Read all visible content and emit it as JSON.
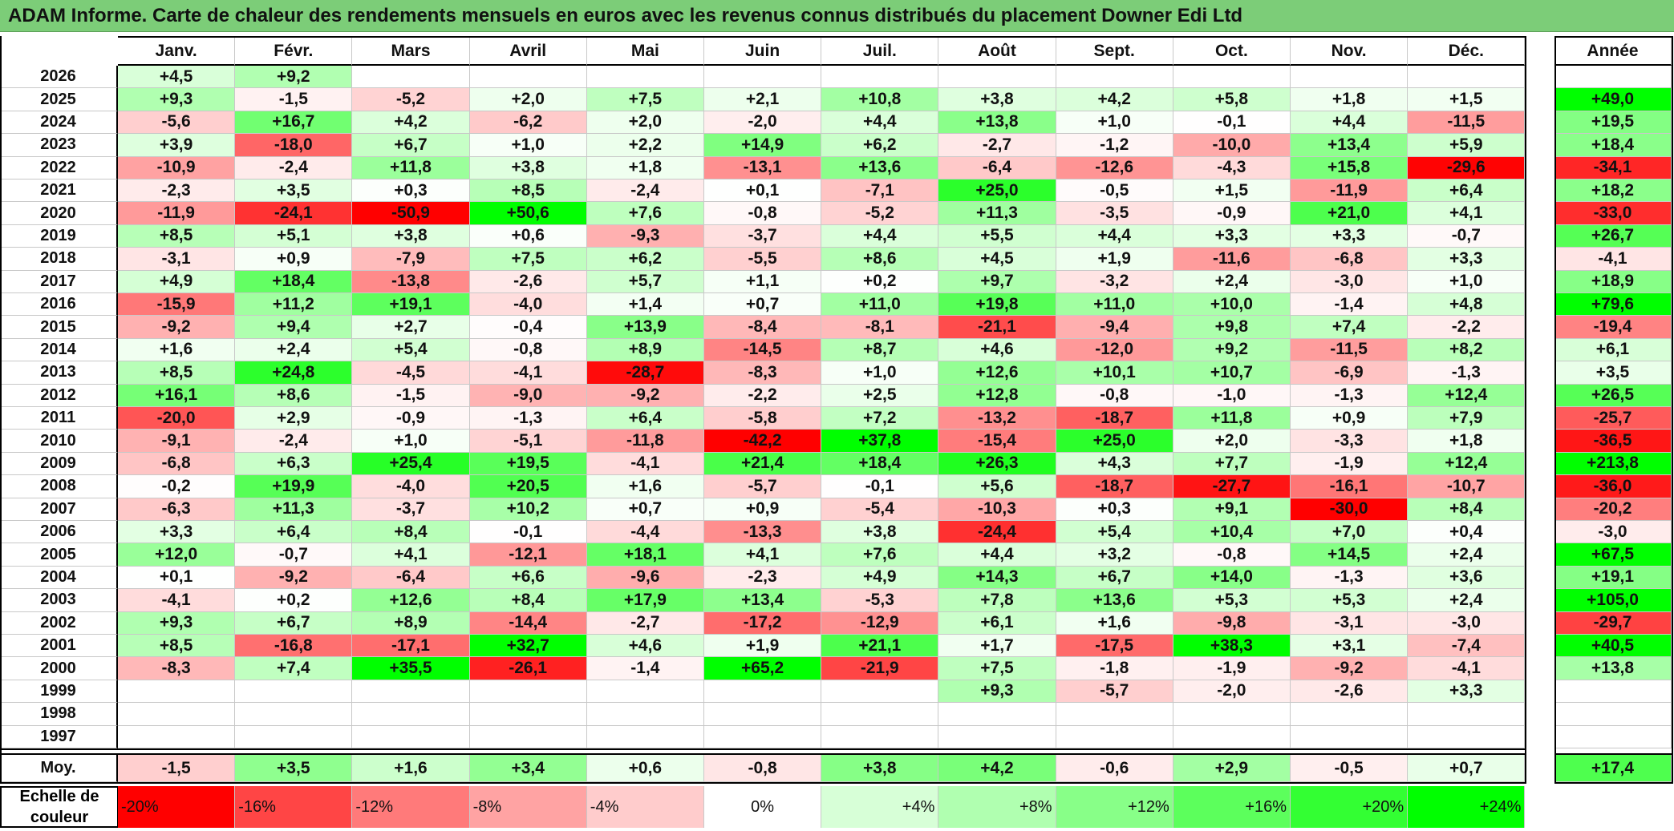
{
  "title": "ADAM Informe. Carte de chaleur des rendements mensuels en euros avec les revenus connus distribués du placement Downer Edi Ltd",
  "chart_data": {
    "type": "heatmap",
    "months": [
      "Janv.",
      "Févr.",
      "Mars",
      "Avril",
      "Mai",
      "Juin",
      "Juil.",
      "Août",
      "Sept.",
      "Oct.",
      "Nov.",
      "Déc."
    ],
    "year_header": "Année",
    "rows": [
      {
        "year": "2026",
        "values": [
          "+4,5",
          "+9,2",
          "",
          "",
          "",
          "",
          "",
          "",
          "",
          "",
          "",
          ""
        ],
        "annual": ""
      },
      {
        "year": "2025",
        "values": [
          "+9,3",
          "-1,5",
          "-5,2",
          "+2,0",
          "+7,5",
          "+2,1",
          "+10,8",
          "+3,8",
          "+4,2",
          "+5,8",
          "+1,8",
          "+1,5"
        ],
        "annual": "+49,0"
      },
      {
        "year": "2024",
        "values": [
          "-5,6",
          "+16,7",
          "+4,2",
          "-6,2",
          "+2,0",
          "-2,0",
          "+4,4",
          "+13,8",
          "+1,0",
          "-0,1",
          "+4,4",
          "-11,5"
        ],
        "annual": "+19,5"
      },
      {
        "year": "2023",
        "values": [
          "+3,9",
          "-18,0",
          "+6,7",
          "+1,0",
          "+2,2",
          "+14,9",
          "+6,2",
          "-2,7",
          "-1,2",
          "-10,0",
          "+13,4",
          "+5,9"
        ],
        "annual": "+18,4"
      },
      {
        "year": "2022",
        "values": [
          "-10,9",
          "-2,4",
          "+11,8",
          "+3,8",
          "+1,8",
          "-13,1",
          "+13,6",
          "-6,4",
          "-12,6",
          "-4,3",
          "+15,8",
          "-29,6"
        ],
        "annual": "-34,1"
      },
      {
        "year": "2021",
        "values": [
          "-2,3",
          "+3,5",
          "+0,3",
          "+8,5",
          "-2,4",
          "+0,1",
          "-7,1",
          "+25,0",
          "-0,5",
          "+1,5",
          "-11,9",
          "+6,4"
        ],
        "annual": "+18,2"
      },
      {
        "year": "2020",
        "values": [
          "-11,9",
          "-24,1",
          "-50,9",
          "+50,6",
          "+7,6",
          "-0,8",
          "-5,2",
          "+11,3",
          "-3,5",
          "-0,9",
          "+21,0",
          "+4,1"
        ],
        "annual": "-33,0"
      },
      {
        "year": "2019",
        "values": [
          "+8,5",
          "+5,1",
          "+3,8",
          "+0,6",
          "-9,3",
          "-3,7",
          "+4,4",
          "+5,5",
          "+4,4",
          "+3,3",
          "+3,3",
          "-0,7"
        ],
        "annual": "+26,7"
      },
      {
        "year": "2018",
        "values": [
          "-3,1",
          "+0,9",
          "-7,9",
          "+7,5",
          "+6,2",
          "-5,5",
          "+8,6",
          "+4,5",
          "+1,9",
          "-11,6",
          "-6,8",
          "+3,3"
        ],
        "annual": "-4,1"
      },
      {
        "year": "2017",
        "values": [
          "+4,9",
          "+18,4",
          "-13,8",
          "-2,6",
          "+5,7",
          "+1,1",
          "+0,2",
          "+9,7",
          "-3,2",
          "+2,4",
          "-3,0",
          "+1,0"
        ],
        "annual": "+18,9"
      },
      {
        "year": "2016",
        "values": [
          "-15,9",
          "+11,2",
          "+19,1",
          "-4,0",
          "+1,4",
          "+0,7",
          "+11,0",
          "+19,8",
          "+11,0",
          "+10,0",
          "-1,4",
          "+4,8"
        ],
        "annual": "+79,6"
      },
      {
        "year": "2015",
        "values": [
          "-9,2",
          "+9,4",
          "+2,7",
          "-0,4",
          "+13,9",
          "-8,4",
          "-8,1",
          "-21,1",
          "-9,4",
          "+9,8",
          "+7,4",
          "-2,2"
        ],
        "annual": "-19,4"
      },
      {
        "year": "2014",
        "values": [
          "+1,6",
          "+2,4",
          "+5,4",
          "-0,8",
          "+8,9",
          "-14,5",
          "+8,7",
          "+4,6",
          "-12,0",
          "+9,2",
          "-11,5",
          "+8,2"
        ],
        "annual": "+6,1"
      },
      {
        "year": "2013",
        "values": [
          "+8,5",
          "+24,8",
          "-4,5",
          "-4,1",
          "-28,7",
          "-8,3",
          "+1,0",
          "+12,6",
          "+10,1",
          "+10,7",
          "-6,9",
          "-1,3"
        ],
        "annual": "+3,5"
      },
      {
        "year": "2012",
        "values": [
          "+16,1",
          "+8,6",
          "-1,5",
          "-9,0",
          "-9,2",
          "-2,2",
          "+2,5",
          "+12,8",
          "-0,8",
          "-1,0",
          "-1,3",
          "+12,4"
        ],
        "annual": "+26,5"
      },
      {
        "year": "2011",
        "values": [
          "-20,0",
          "+2,9",
          "-0,9",
          "-1,3",
          "+6,4",
          "-5,8",
          "+7,2",
          "-13,2",
          "-18,7",
          "+11,8",
          "+0,9",
          "+7,9"
        ],
        "annual": "-25,7"
      },
      {
        "year": "2010",
        "values": [
          "-9,1",
          "-2,4",
          "+1,0",
          "-5,1",
          "-11,8",
          "-42,2",
          "+37,8",
          "-15,4",
          "+25,0",
          "+2,0",
          "-3,3",
          "+1,8"
        ],
        "annual": "-36,5"
      },
      {
        "year": "2009",
        "values": [
          "-6,8",
          "+6,3",
          "+25,4",
          "+19,5",
          "-4,1",
          "+21,4",
          "+18,4",
          "+26,3",
          "+4,3",
          "+7,7",
          "-1,9",
          "+12,4"
        ],
        "annual": "+213,8"
      },
      {
        "year": "2008",
        "values": [
          "-0,2",
          "+19,9",
          "-4,0",
          "+20,5",
          "+1,6",
          "-5,7",
          "-0,1",
          "+5,6",
          "-18,7",
          "-27,7",
          "-16,1",
          "-10,7"
        ],
        "annual": "-36,0"
      },
      {
        "year": "2007",
        "values": [
          "-6,3",
          "+11,3",
          "-3,7",
          "+10,2",
          "+0,7",
          "+0,9",
          "-5,4",
          "-10,3",
          "+0,3",
          "+9,1",
          "-30,0",
          "+8,4"
        ],
        "annual": "-20,2"
      },
      {
        "year": "2006",
        "values": [
          "+3,3",
          "+6,4",
          "+8,4",
          "-0,1",
          "-4,4",
          "-13,3",
          "+3,8",
          "-24,4",
          "+5,4",
          "+10,4",
          "+7,0",
          "+0,4"
        ],
        "annual": "-3,0"
      },
      {
        "year": "2005",
        "values": [
          "+12,0",
          "-0,7",
          "+4,1",
          "-12,1",
          "+18,1",
          "+4,1",
          "+7,6",
          "+4,4",
          "+3,2",
          "-0,8",
          "+14,5",
          "+2,4"
        ],
        "annual": "+67,5"
      },
      {
        "year": "2004",
        "values": [
          "+0,1",
          "-9,2",
          "-6,4",
          "+6,6",
          "-9,6",
          "-2,3",
          "+4,9",
          "+14,3",
          "+6,7",
          "+14,0",
          "-1,3",
          "+3,6"
        ],
        "annual": "+19,1"
      },
      {
        "year": "2003",
        "values": [
          "-4,1",
          "+0,2",
          "+12,6",
          "+8,4",
          "+17,9",
          "+13,4",
          "-5,3",
          "+7,8",
          "+13,6",
          "+5,3",
          "+5,3",
          "+2,4"
        ],
        "annual": "+105,0"
      },
      {
        "year": "2002",
        "values": [
          "+9,3",
          "+6,7",
          "+8,9",
          "-14,4",
          "-2,7",
          "-17,2",
          "-12,9",
          "+6,1",
          "+1,6",
          "-9,8",
          "-3,1",
          "-3,0"
        ],
        "annual": "-29,7"
      },
      {
        "year": "2001",
        "values": [
          "+8,5",
          "-16,8",
          "-17,1",
          "+32,7",
          "+4,6",
          "+1,9",
          "+21,1",
          "+1,7",
          "-17,5",
          "+38,3",
          "+3,1",
          "-7,4"
        ],
        "annual": "+40,5"
      },
      {
        "year": "2000",
        "values": [
          "-8,3",
          "+7,4",
          "+35,5",
          "-26,1",
          "-1,4",
          "+65,2",
          "-21,9",
          "+7,5",
          "-1,8",
          "-1,9",
          "-9,2",
          "-4,1"
        ],
        "annual": "+13,8"
      },
      {
        "year": "1999",
        "values": [
          "",
          "",
          "",
          "",
          "",
          "",
          "",
          "+9,3",
          "-5,7",
          "-2,0",
          "-2,6",
          "+3,3"
        ],
        "annual": ""
      },
      {
        "year": "1998",
        "values": [
          "",
          "",
          "",
          "",
          "",
          "",
          "",
          "",
          "",
          "",
          "",
          ""
        ],
        "annual": ""
      },
      {
        "year": "1997",
        "values": [
          "",
          "",
          "",
          "",
          "",
          "",
          "",
          "",
          "",
          "",
          "",
          ""
        ],
        "annual": ""
      }
    ],
    "average": {
      "label": "Moy.",
      "values": [
        "-1,5",
        "+3,5",
        "+1,6",
        "+3,4",
        "+0,6",
        "-0,8",
        "+3,8",
        "+4,2",
        "-0,6",
        "+2,9",
        "-0,5",
        "+0,7"
      ],
      "annual": "+17,4"
    },
    "color_scale": {
      "label": "Echelle de couleur",
      "stops": [
        "-20%",
        "-16%",
        "-12%",
        "-8%",
        "-4%",
        "0%",
        "+4%",
        "+8%",
        "+12%",
        "+16%",
        "+20%",
        "+24%"
      ],
      "colors": [
        "#ff0000",
        "#ff4545",
        "#ff7a7a",
        "#ffa3a3",
        "#ffcccc",
        "#ffffff",
        "#d7ffd7",
        "#b0ffb0",
        "#88ff88",
        "#5cff5c",
        "#33ff33",
        "#00ff00"
      ]
    }
  }
}
